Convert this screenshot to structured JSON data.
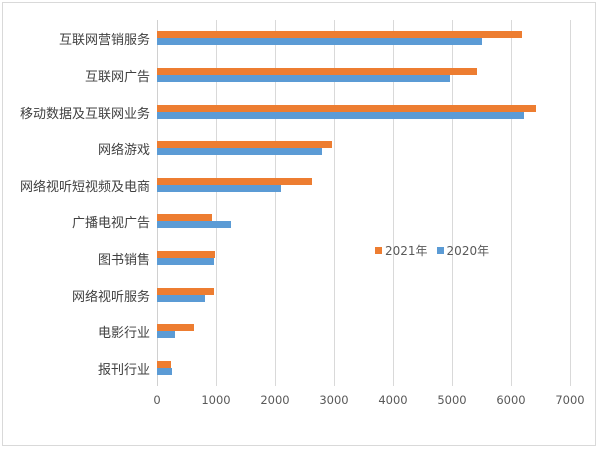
{
  "chart_data": {
    "type": "bar",
    "orientation": "horizontal",
    "title": "",
    "xlabel": "",
    "ylabel": "",
    "xlim": [
      0,
      7000
    ],
    "xticks": [
      0,
      1000,
      2000,
      3000,
      4000,
      5000,
      6000,
      7000
    ],
    "grid": true,
    "legend_position": "inside-right-middle",
    "categories": [
      "互联网营销服务",
      "互联网广告",
      "移动数据及互联网业务",
      "网络游戏",
      "网络视听短视频及电商",
      "广播电视广告",
      "图书销售",
      "网络视听服务",
      "电影行业",
      "报刊行业"
    ],
    "series": [
      {
        "name": "2021年",
        "color": "#ed7d31",
        "values": [
          6190,
          5430,
          6420,
          2965,
          2625,
          930,
          980,
          965,
          625,
          245
        ]
      },
      {
        "name": "2020年",
        "color": "#5b9bd5",
        "values": [
          5500,
          4965,
          6220,
          2795,
          2100,
          1260,
          960,
          820,
          305,
          260
        ]
      }
    ]
  },
  "legend": {
    "s2021": "2021年",
    "s2020": "2020年"
  },
  "ticks": [
    "0",
    "1000",
    "2000",
    "3000",
    "4000",
    "5000",
    "6000",
    "7000"
  ]
}
